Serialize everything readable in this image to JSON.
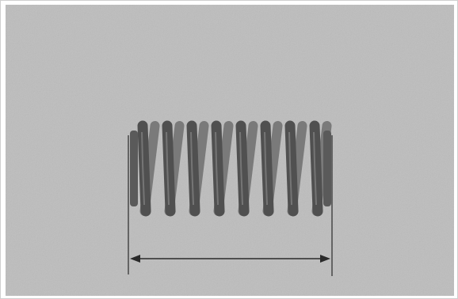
{
  "image": {
    "subject": "coil-spring",
    "background_color": "#bdbdbd",
    "spring_color": "#505050",
    "spring_shade": "#7a7a7a",
    "measurement_color": "#2a2a2a"
  }
}
